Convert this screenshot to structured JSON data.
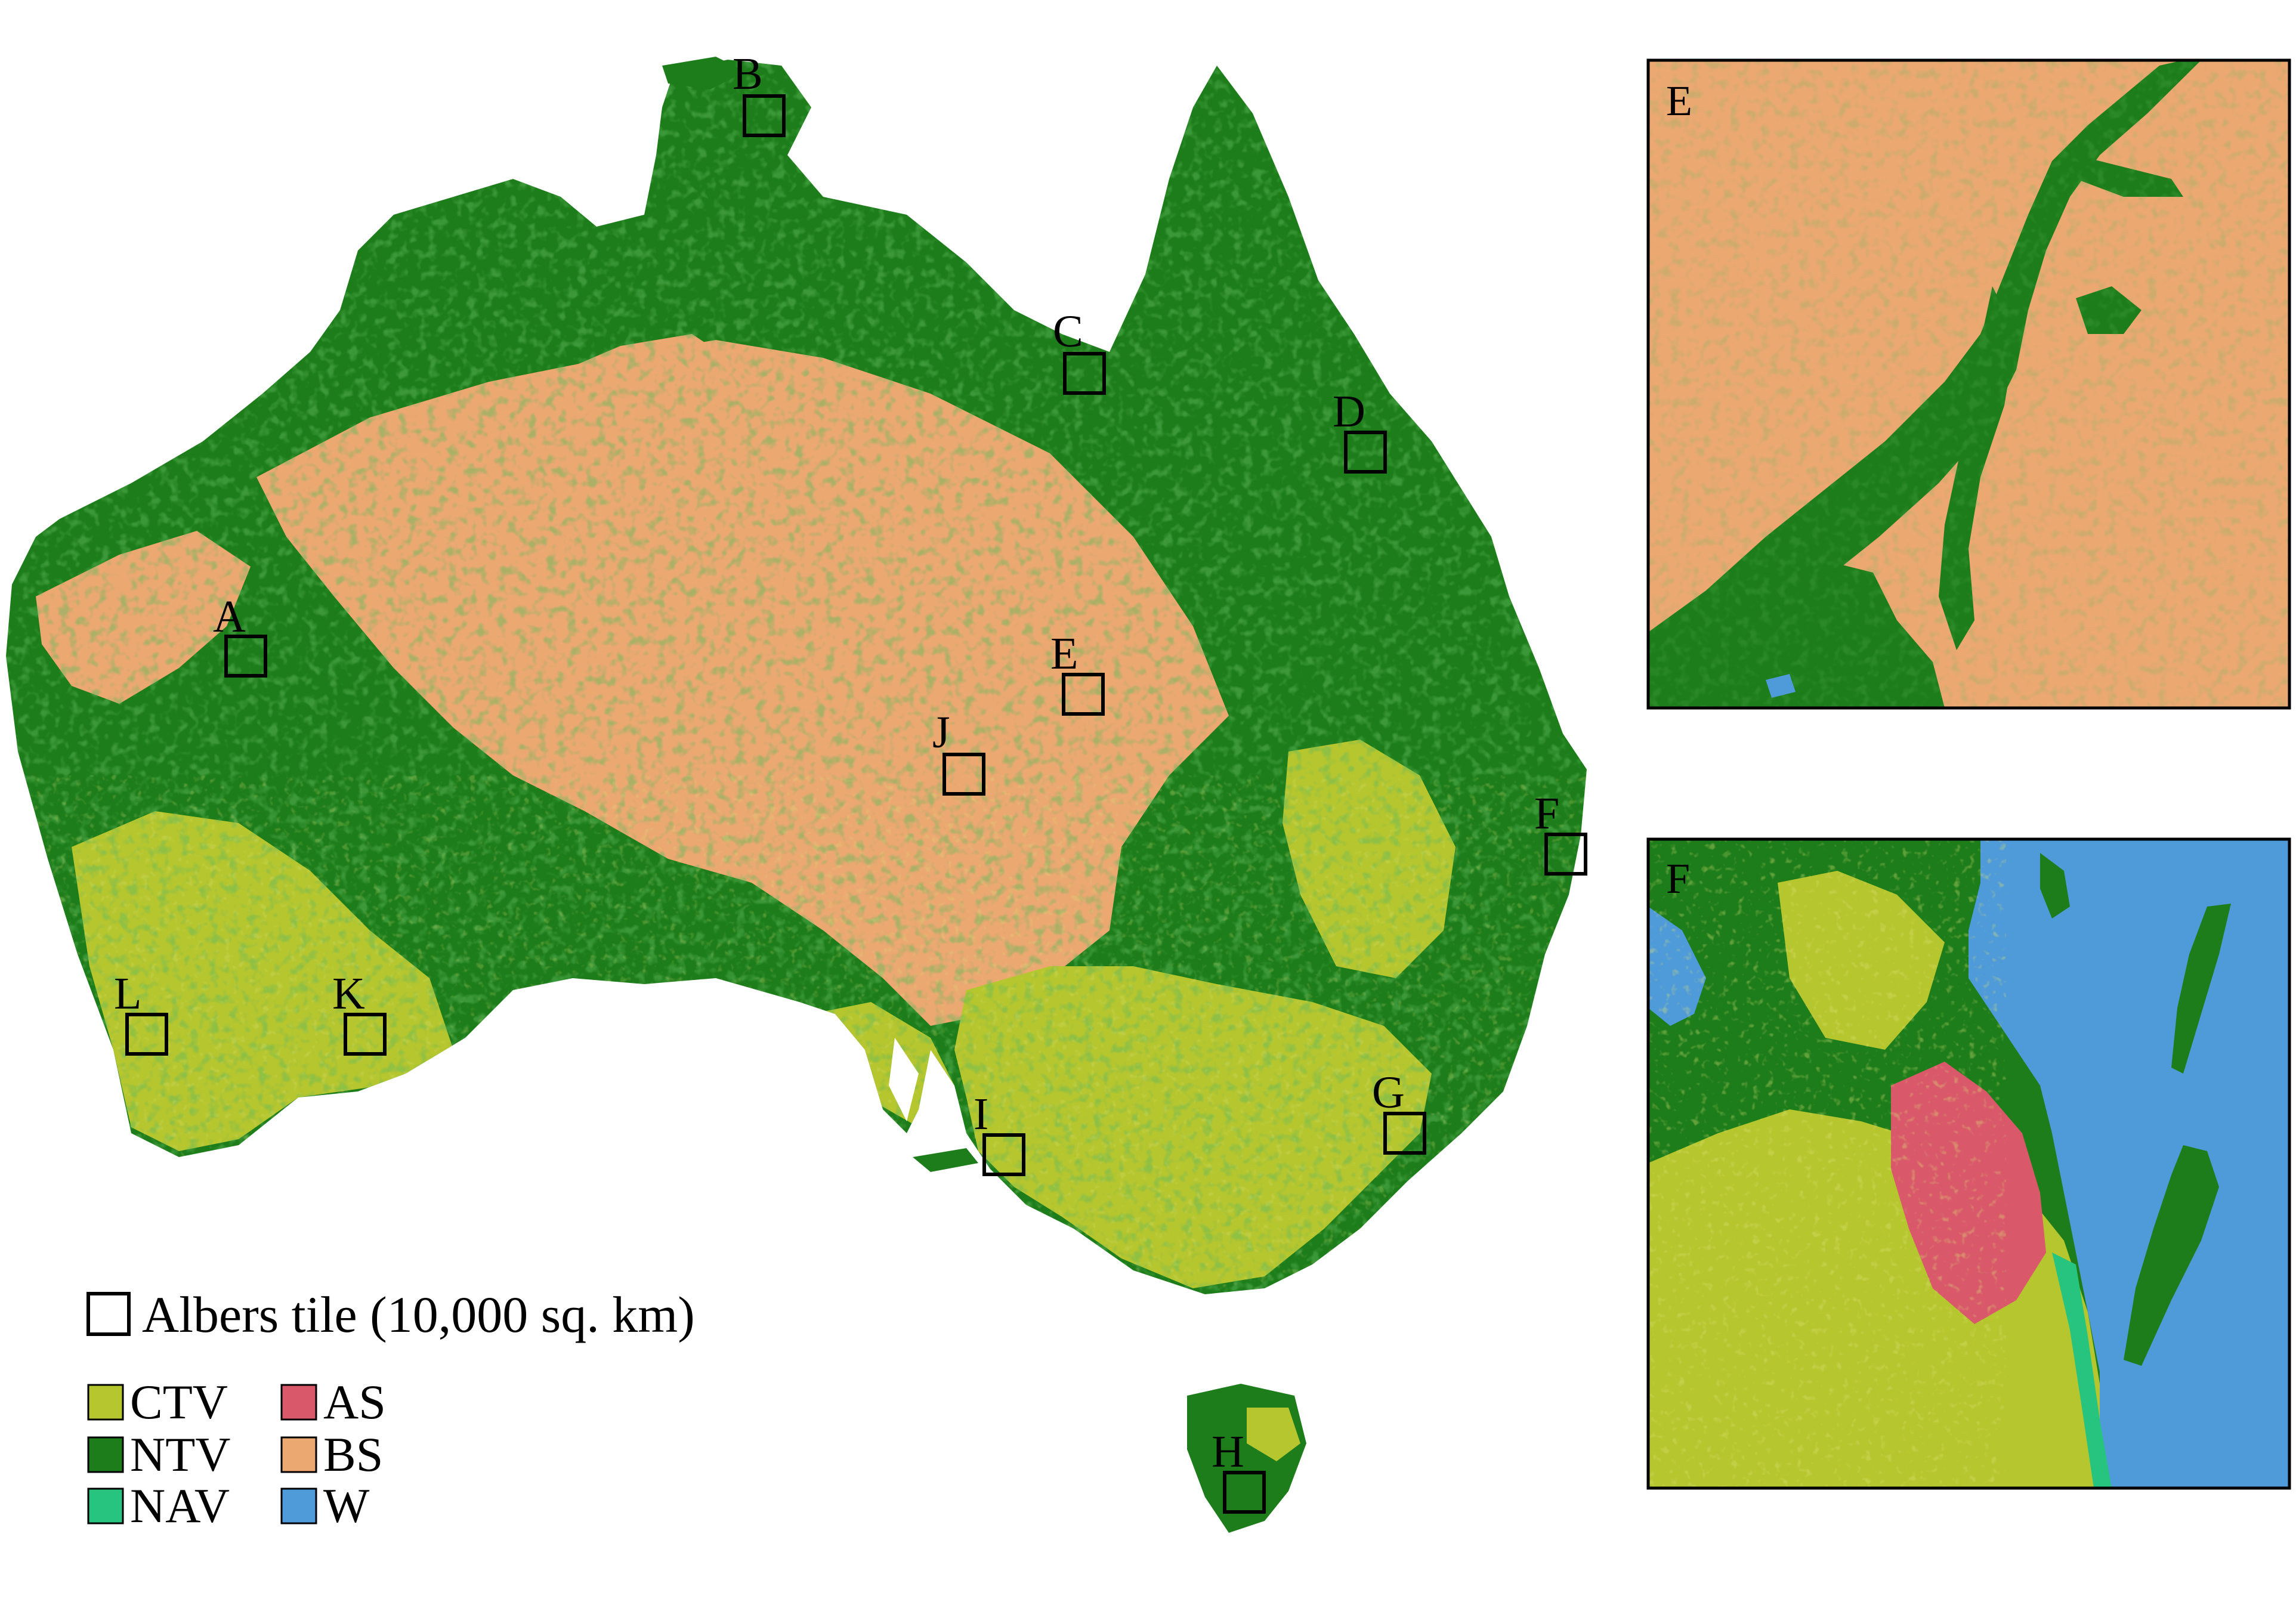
{
  "colors": {
    "CTV": "#b6c62f",
    "NTV": "#1e7d1b",
    "NAV": "#27c47f",
    "AS": "#d9596a",
    "BS": "#eba871",
    "W": "#4f9ad8",
    "background": "#ffffff",
    "outline": "#000000"
  },
  "tiles": [
    {
      "label": "A"
    },
    {
      "label": "B"
    },
    {
      "label": "C"
    },
    {
      "label": "D"
    },
    {
      "label": "E"
    },
    {
      "label": "F"
    },
    {
      "label": "G"
    },
    {
      "label": "H"
    },
    {
      "label": "I"
    },
    {
      "label": "J"
    },
    {
      "label": "K"
    },
    {
      "label": "L"
    }
  ],
  "insets": [
    {
      "label": "E"
    },
    {
      "label": "F"
    }
  ],
  "legend": {
    "tile_label": "Albers tile (10,000 sq. km)",
    "classes": [
      {
        "code": "CTV",
        "label": "CTV",
        "color": "#b6c62f"
      },
      {
        "code": "NTV",
        "label": "NTV",
        "color": "#1e7d1b"
      },
      {
        "code": "NAV",
        "label": "NAV",
        "color": "#27c47f"
      },
      {
        "code": "AS",
        "label": "AS",
        "color": "#d9596a"
      },
      {
        "code": "BS",
        "label": "BS",
        "color": "#eba871"
      },
      {
        "code": "W",
        "label": "W",
        "color": "#4f9ad8"
      }
    ]
  }
}
